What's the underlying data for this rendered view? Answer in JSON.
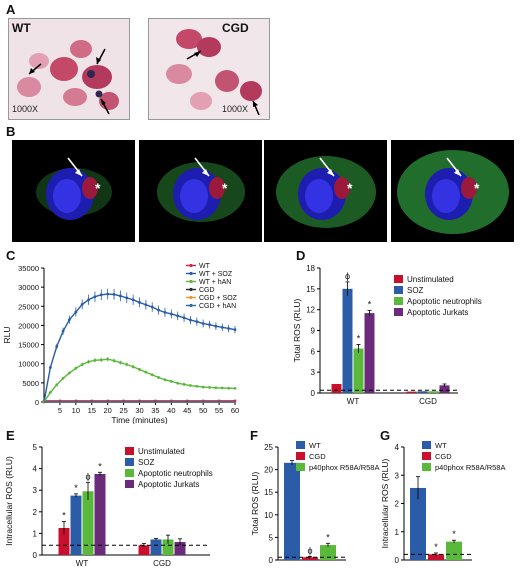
{
  "panel_labels": [
    "A",
    "B",
    "C",
    "D",
    "E",
    "F",
    "G"
  ],
  "panel_a": {
    "left_label": "WT",
    "right_label": "CGD",
    "left_mag": "1000X",
    "right_mag": "1000X"
  },
  "panel_b": {
    "marker": "*"
  },
  "colors": {
    "wt": "#d7263d",
    "wt_soz": "#2a5ca8",
    "wt_han": "#5ab83b",
    "cgd": "#2c2c2c",
    "cgd_soz": "#f0962b",
    "cgd_han": "#2e6c9c",
    "unstim": "#c8102e",
    "soz": "#2a5ca8",
    "apop_neut": "#5ab83b",
    "apop_jurkat": "#6b2a7a",
    "bar_wt": "#2a5ca8",
    "bar_cgd": "#c8102e",
    "bar_p40": "#5ab83b"
  },
  "chart_data": [
    {
      "panel": "C",
      "type": "line",
      "xlabel": "Time (minutes)",
      "ylabel": "RLU",
      "xlim": [
        0,
        60
      ],
      "ylim": [
        0,
        35000
      ],
      "x_ticks": [
        5,
        10,
        15,
        20,
        25,
        30,
        35,
        40,
        45,
        50,
        55,
        60
      ],
      "y_ticks": [
        0,
        5000,
        10000,
        15000,
        20000,
        25000,
        30000,
        35000
      ],
      "y_tick_labels": [
        "0",
        "5000",
        "10000",
        "15000",
        "20000",
        "25000",
        "30000",
        "35000"
      ],
      "series": [
        {
          "name": "WT",
          "color_key": "wt",
          "x": [
            0,
            5,
            10,
            15,
            20,
            25,
            30,
            35,
            40,
            45,
            50,
            55,
            60
          ],
          "y": [
            300,
            300,
            300,
            300,
            300,
            300,
            300,
            300,
            300,
            300,
            300,
            300,
            300
          ]
        },
        {
          "name": "WT + SOZ",
          "color_key": "wt_soz",
          "x": [
            0,
            2,
            4,
            6,
            8,
            10,
            12,
            14,
            16,
            18,
            20,
            22,
            24,
            26,
            28,
            30,
            32,
            34,
            36,
            38,
            40,
            42,
            44,
            46,
            48,
            50,
            52,
            54,
            56,
            58,
            60
          ],
          "y": [
            0,
            9000,
            14500,
            18500,
            21500,
            23500,
            25500,
            26700,
            27500,
            28000,
            28200,
            28100,
            27700,
            27200,
            26700,
            26000,
            25400,
            24800,
            24000,
            23400,
            23000,
            22500,
            22000,
            21400,
            21000,
            20500,
            20200,
            19800,
            19500,
            19200,
            18900
          ]
        },
        {
          "name": "WT + hAN",
          "color_key": "wt_han",
          "x": [
            0,
            2,
            4,
            6,
            8,
            10,
            12,
            14,
            16,
            18,
            20,
            22,
            24,
            26,
            28,
            30,
            32,
            34,
            36,
            38,
            40,
            42,
            44,
            46,
            48,
            50,
            52,
            54,
            56,
            58,
            60
          ],
          "y": [
            0,
            2500,
            4500,
            6200,
            7600,
            8800,
            9800,
            10500,
            10900,
            11000,
            11200,
            10800,
            10300,
            9800,
            9200,
            8500,
            7800,
            7100,
            6400,
            5800,
            5400,
            4900,
            4600,
            4300,
            4100,
            3900,
            3800,
            3700,
            3650,
            3600,
            3550
          ]
        },
        {
          "name": "CGD",
          "color_key": "cgd",
          "x": [
            0,
            60
          ],
          "y": [
            0,
            0
          ]
        },
        {
          "name": "CGD + SOZ",
          "color_key": "cgd_soz",
          "x": [
            0,
            60
          ],
          "y": [
            0,
            0
          ]
        },
        {
          "name": "CGD + hAN",
          "color_key": "cgd_han",
          "x": [
            0,
            60
          ],
          "y": [
            0,
            0
          ]
        }
      ]
    },
    {
      "panel": "D",
      "type": "bar",
      "ylabel": "Total ROS (RLU)",
      "ylim": [
        0,
        18
      ],
      "y_ticks": [
        0,
        3,
        6,
        9,
        12,
        15,
        18
      ],
      "categories": [
        "WT",
        "CGD"
      ],
      "legend": [
        "Unstimulated",
        "SOZ",
        "Apoptotic neutrophils",
        "Apoptotic Jurkats"
      ],
      "series": [
        {
          "name": "Unstimulated",
          "color_key": "unstim",
          "values": [
            1.3,
            0.2
          ]
        },
        {
          "name": "SOZ",
          "color_key": "soz",
          "values": [
            15.0,
            0.25
          ]
        },
        {
          "name": "Apoptotic neutrophils",
          "color_key": "apop_neut",
          "values": [
            6.4,
            0.25
          ]
        },
        {
          "name": "Apoptotic Jurkats",
          "color_key": "apop_jurkat",
          "values": [
            11.5,
            1.1
          ]
        }
      ],
      "errors": [
        [
          0,
          0
        ],
        [
          1,
          0
        ],
        [
          0.6,
          0
        ],
        [
          0.4,
          0.2
        ]
      ],
      "annotations": [
        {
          "series": 1,
          "cat": 0,
          "text": "ϕ"
        },
        {
          "series": 2,
          "cat": 0,
          "text": "*"
        },
        {
          "series": 3,
          "cat": 0,
          "text": "*"
        }
      ],
      "dashed_line": 0.4
    },
    {
      "panel": "E",
      "type": "bar",
      "ylabel": "Intracellular ROS (RLU)",
      "ylim": [
        0,
        5
      ],
      "y_ticks": [
        0,
        1,
        2,
        3,
        4,
        5
      ],
      "categories": [
        "WT",
        "CGD"
      ],
      "legend": [
        "Unstimulated",
        "SOZ",
        "Apoptotic neutrophils",
        "Apoptotic Jurkats"
      ],
      "series": [
        {
          "name": "Unstimulated",
          "color_key": "unstim",
          "values": [
            1.25,
            0.45
          ]
        },
        {
          "name": "SOZ",
          "color_key": "soz",
          "values": [
            2.75,
            0.72
          ]
        },
        {
          "name": "Apoptotic neutrophils",
          "color_key": "apop_neut",
          "values": [
            2.95,
            0.72
          ]
        },
        {
          "name": "Apoptotic Jurkats",
          "color_key": "apop_jurkat",
          "values": [
            3.75,
            0.6
          ]
        }
      ],
      "errors": [
        [
          0.3,
          0.08
        ],
        [
          0.08,
          0.05
        ],
        [
          0.4,
          0.2
        ],
        [
          0.08,
          0.15
        ]
      ],
      "annotations": [
        {
          "series": 0,
          "cat": 0,
          "text": "*"
        },
        {
          "series": 1,
          "cat": 0,
          "text": "*"
        },
        {
          "series": 2,
          "cat": 0,
          "text": "ϕ"
        },
        {
          "series": 3,
          "cat": 0,
          "text": "*"
        }
      ],
      "dashed_line": 0.45
    },
    {
      "panel": "F",
      "type": "bar",
      "ylabel": "Total ROS (RLU)",
      "ylim": [
        0,
        25
      ],
      "y_ticks": [
        0,
        5,
        10,
        15,
        20,
        25
      ],
      "legend": [
        "WT",
        "CGD",
        "p40phox R58A/R58A"
      ],
      "series": [
        {
          "name": "WT",
          "color_key": "bar_wt",
          "value": 21.5,
          "error": 0.5,
          "annotation": ""
        },
        {
          "name": "CGD",
          "color_key": "bar_cgd",
          "value": 0.6,
          "error": 0.2,
          "annotation": "ϕ"
        },
        {
          "name": "p40phox R58A/R58A",
          "color_key": "bar_p40",
          "value": 3.3,
          "error": 0.4,
          "annotation": "*"
        }
      ],
      "dashed_line": 0.6
    },
    {
      "panel": "G",
      "type": "bar",
      "ylabel": "Intracellular ROS (RLU)",
      "ylim": [
        0,
        4
      ],
      "y_ticks": [
        0,
        1,
        2,
        3,
        4
      ],
      "legend": [
        "WT",
        "CGD",
        "p40phox R58A/R58A"
      ],
      "series": [
        {
          "name": "WT",
          "color_key": "bar_wt",
          "value": 2.55,
          "error": 0.4,
          "annotation": ""
        },
        {
          "name": "CGD",
          "color_key": "bar_cgd",
          "value": 0.2,
          "error": 0.05,
          "annotation": "*"
        },
        {
          "name": "p40phox R58A/R58A",
          "color_key": "bar_p40",
          "value": 0.65,
          "error": 0.05,
          "annotation": "*"
        }
      ],
      "dashed_line": 0.2
    }
  ]
}
